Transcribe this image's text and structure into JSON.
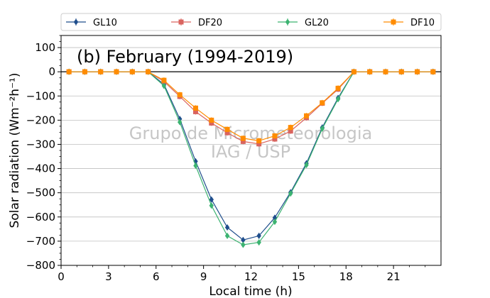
{
  "chart_data": {
    "type": "line",
    "title": "(b) February (1994-2019)",
    "xlabel": "Local time (h)",
    "ylabel": "Solar radiation (Wm⁻²h⁻¹)",
    "xlim": [
      0,
      24
    ],
    "ylim": [
      -800,
      150
    ],
    "xticks": [
      0,
      3,
      6,
      9,
      12,
      15,
      18,
      21
    ],
    "yticks": [
      -800,
      -700,
      -600,
      -500,
      -400,
      -300,
      -200,
      -100,
      0,
      100
    ],
    "grid": "horizontal",
    "legend_position": "top, above plot, 4 columns",
    "x": [
      0.5,
      1.5,
      2.5,
      3.5,
      4.5,
      5.5,
      6.5,
      7.5,
      8.5,
      9.5,
      10.5,
      11.5,
      12.5,
      13.5,
      14.5,
      15.5,
      16.5,
      17.5,
      18.5,
      19.5,
      20.5,
      21.5,
      22.5,
      23.5
    ],
    "series": [
      {
        "name": "GL10",
        "color": "#1f4e8c",
        "marker": "diamond",
        "values": [
          0,
          0,
          0,
          0,
          0,
          0,
          -52,
          -195,
          -370,
          -528,
          -643,
          -695,
          -678,
          -603,
          -498,
          -378,
          -230,
          -108,
          0,
          0,
          0,
          0,
          0,
          0
        ]
      },
      {
        "name": "DF20",
        "color": "#d9645f",
        "marker": "square",
        "values": [
          0,
          0,
          0,
          0,
          0,
          0,
          -40,
          -102,
          -165,
          -212,
          -252,
          -288,
          -298,
          -278,
          -245,
          -190,
          -130,
          -72,
          0,
          0,
          0,
          0,
          0,
          0
        ]
      },
      {
        "name": "GL20",
        "color": "#3cb371",
        "marker": "diamond",
        "values": [
          0,
          0,
          0,
          0,
          0,
          0,
          -58,
          -208,
          -388,
          -553,
          -678,
          -715,
          -705,
          -620,
          -503,
          -385,
          -235,
          -113,
          0,
          0,
          0,
          0,
          0,
          0
        ]
      },
      {
        "name": "DF10",
        "color": "#ff8c00",
        "marker": "square",
        "values": [
          0,
          0,
          0,
          0,
          0,
          0,
          -35,
          -95,
          -150,
          -200,
          -238,
          -275,
          -285,
          -265,
          -230,
          -182,
          -128,
          -68,
          0,
          0,
          0,
          0,
          0,
          0
        ]
      }
    ],
    "watermark": [
      "Grupo de Micrometeorologia",
      "IAG / USP"
    ]
  }
}
